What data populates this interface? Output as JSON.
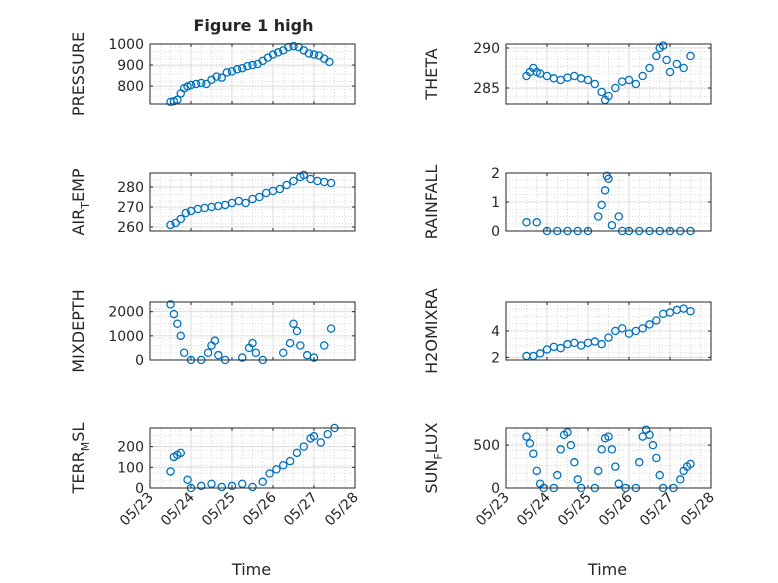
{
  "figure": {
    "title": "Figure 1 high"
  },
  "colors": {
    "marker": "#0072BD",
    "axis": "#262626",
    "grid": "#dcdcdc",
    "minorgrid": "#d0d0d0"
  },
  "chart_data": [
    {
      "type": "scatter",
      "panel": "pressure",
      "title": "Figure 1 high",
      "ylabel": "PRESSURE",
      "ylim": [
        715,
        1000
      ],
      "yticks": [
        800,
        900,
        1000
      ],
      "yticklabels": [
        "800",
        "900",
        "1000"
      ],
      "xlim": [
        "05/23",
        "05/28"
      ],
      "grid": true,
      "points": [
        [
          "05/23 12:00",
          725
        ],
        [
          "05/23 14:00",
          728
        ],
        [
          "05/23 16:00",
          735
        ],
        [
          "05/23 18:00",
          765
        ],
        [
          "05/23 20:00",
          790
        ],
        [
          "05/23 22:00",
          798
        ],
        [
          "05/24 00:00",
          805
        ],
        [
          "05/24 03:00",
          810
        ],
        [
          "05/24 06:00",
          815
        ],
        [
          "05/24 09:00",
          810
        ],
        [
          "05/24 12:00",
          830
        ],
        [
          "05/24 15:00",
          845
        ],
        [
          "05/24 18:00",
          840
        ],
        [
          "05/24 21:00",
          865
        ],
        [
          "05/25 00:00",
          870
        ],
        [
          "05/25 03:00",
          880
        ],
        [
          "05/25 06:00",
          885
        ],
        [
          "05/25 09:00",
          895
        ],
        [
          "05/25 12:00",
          900
        ],
        [
          "05/25 15:00",
          905
        ],
        [
          "05/25 18:00",
          920
        ],
        [
          "05/25 21:00",
          935
        ],
        [
          "05/26 00:00",
          950
        ],
        [
          "05/26 03:00",
          960
        ],
        [
          "05/26 06:00",
          970
        ],
        [
          "05/26 09:00",
          985
        ],
        [
          "05/26 12:00",
          990
        ],
        [
          "05/26 15:00",
          985
        ],
        [
          "05/26 18:00",
          970
        ],
        [
          "05/26 21:00",
          955
        ],
        [
          "05/27 00:00",
          950
        ],
        [
          "05/27 03:00",
          945
        ],
        [
          "05/27 06:00",
          930
        ],
        [
          "05/27 09:00",
          915
        ]
      ]
    },
    {
      "type": "scatter",
      "panel": "theta",
      "ylabel": "THETA",
      "ylim": [
        283,
        290.5
      ],
      "yticks": [
        285,
        290
      ],
      "yticklabels": [
        "285",
        "290"
      ],
      "xlim": [
        "05/23",
        "05/28"
      ],
      "grid": true,
      "points": [
        [
          "05/23 12:00",
          286.5
        ],
        [
          "05/23 14:00",
          287
        ],
        [
          "05/23 16:00",
          287.5
        ],
        [
          "05/23 18:00",
          287
        ],
        [
          "05/23 20:00",
          286.8
        ],
        [
          "05/24 00:00",
          286.5
        ],
        [
          "05/24 04:00",
          286.2
        ],
        [
          "05/24 08:00",
          286
        ],
        [
          "05/24 12:00",
          286.3
        ],
        [
          "05/24 16:00",
          286.5
        ],
        [
          "05/24 20:00",
          286.2
        ],
        [
          "05/25 00:00",
          286
        ],
        [
          "05/25 04:00",
          285.5
        ],
        [
          "05/25 08:00",
          284.5
        ],
        [
          "05/25 10:00",
          283.5
        ],
        [
          "05/25 12:00",
          284
        ],
        [
          "05/25 16:00",
          285
        ],
        [
          "05/25 20:00",
          285.8
        ],
        [
          "05/26 00:00",
          286
        ],
        [
          "05/26 04:00",
          285.5
        ],
        [
          "05/26 08:00",
          286.5
        ],
        [
          "05/26 12:00",
          287.5
        ],
        [
          "05/26 16:00",
          289
        ],
        [
          "05/26 18:00",
          290
        ],
        [
          "05/26 20:00",
          290.3
        ],
        [
          "05/26 22:00",
          288.5
        ],
        [
          "05/27 00:00",
          287
        ],
        [
          "05/27 04:00",
          288
        ],
        [
          "05/27 08:00",
          287.5
        ],
        [
          "05/27 12:00",
          289
        ]
      ]
    },
    {
      "type": "scatter",
      "panel": "air_temp",
      "ylabel_main": "AIR",
      "ylabel_sub": "T",
      "ylabel_tail": "EMP",
      "ylim": [
        258,
        287
      ],
      "yticks": [
        260,
        270,
        280
      ],
      "yticklabels": [
        "260",
        "270",
        "280"
      ],
      "xlim": [
        "05/23",
        "05/28"
      ],
      "grid": true,
      "points": [
        [
          "05/23 12:00",
          261
        ],
        [
          "05/23 15:00",
          262
        ],
        [
          "05/23 18:00",
          264
        ],
        [
          "05/23 21:00",
          267
        ],
        [
          "05/24 00:00",
          268
        ],
        [
          "05/24 04:00",
          269
        ],
        [
          "05/24 08:00",
          269.5
        ],
        [
          "05/24 12:00",
          270
        ],
        [
          "05/24 16:00",
          270.5
        ],
        [
          "05/24 20:00",
          271
        ],
        [
          "05/25 00:00",
          272
        ],
        [
          "05/25 04:00",
          273
        ],
        [
          "05/25 08:00",
          272
        ],
        [
          "05/25 12:00",
          274
        ],
        [
          "05/25 16:00",
          275
        ],
        [
          "05/25 20:00",
          277
        ],
        [
          "05/26 00:00",
          278
        ],
        [
          "05/26 04:00",
          279
        ],
        [
          "05/26 08:00",
          281
        ],
        [
          "05/26 12:00",
          283
        ],
        [
          "05/26 16:00",
          285
        ],
        [
          "05/26 18:00",
          286
        ],
        [
          "05/26 22:00",
          284
        ],
        [
          "05/27 02:00",
          283
        ],
        [
          "05/27 06:00",
          282.5
        ],
        [
          "05/27 10:00",
          282
        ]
      ]
    },
    {
      "type": "scatter",
      "panel": "rainfall",
      "ylabel": "RAINFALL",
      "ylim": [
        0,
        2
      ],
      "yticks": [
        0,
        1,
        2
      ],
      "yticklabels": [
        "0",
        "1",
        "2"
      ],
      "xlim": [
        "05/23",
        "05/28"
      ],
      "grid": true,
      "points": [
        [
          "05/23 12:00",
          0.3
        ],
        [
          "05/23 18:00",
          0.3
        ],
        [
          "05/24 00:00",
          0
        ],
        [
          "05/24 06:00",
          0
        ],
        [
          "05/24 12:00",
          0
        ],
        [
          "05/24 18:00",
          0
        ],
        [
          "05/25 00:00",
          0
        ],
        [
          "05/25 06:00",
          0.5
        ],
        [
          "05/25 08:00",
          0.9
        ],
        [
          "05/25 10:00",
          1.4
        ],
        [
          "05/25 11:00",
          1.9
        ],
        [
          "05/25 12:00",
          1.8
        ],
        [
          "05/25 14:00",
          0.2
        ],
        [
          "05/25 18:00",
          0.5
        ],
        [
          "05/25 20:00",
          0
        ],
        [
          "05/26 00:00",
          0
        ],
        [
          "05/26 06:00",
          0
        ],
        [
          "05/26 12:00",
          0
        ],
        [
          "05/26 18:00",
          0
        ],
        [
          "05/27 00:00",
          0
        ],
        [
          "05/27 06:00",
          0
        ],
        [
          "05/27 12:00",
          0
        ]
      ]
    },
    {
      "type": "scatter",
      "panel": "mixdepth",
      "ylabel": "MIXDEPTH",
      "ylim": [
        0,
        2400
      ],
      "yticks": [
        0,
        1000,
        2000
      ],
      "yticklabels": [
        "0",
        "1000",
        "2000"
      ],
      "xlim": [
        "05/23",
        "05/28"
      ],
      "grid": true,
      "points": [
        [
          "05/23 12:00",
          2300
        ],
        [
          "05/23 14:00",
          1900
        ],
        [
          "05/23 16:00",
          1500
        ],
        [
          "05/23 18:00",
          1000
        ],
        [
          "05/23 20:00",
          300
        ],
        [
          "05/24 00:00",
          0
        ],
        [
          "05/24 06:00",
          0
        ],
        [
          "05/24 10:00",
          300
        ],
        [
          "05/24 12:00",
          600
        ],
        [
          "05/24 14:00",
          800
        ],
        [
          "05/24 16:00",
          200
        ],
        [
          "05/24 20:00",
          0
        ],
        [
          "05/25 06:00",
          100
        ],
        [
          "05/25 10:00",
          500
        ],
        [
          "05/25 12:00",
          700
        ],
        [
          "05/25 14:00",
          300
        ],
        [
          "05/25 18:00",
          0
        ],
        [
          "05/26 06:00",
          300
        ],
        [
          "05/26 10:00",
          700
        ],
        [
          "05/26 12:00",
          1500
        ],
        [
          "05/26 14:00",
          1200
        ],
        [
          "05/26 16:00",
          600
        ],
        [
          "05/26 20:00",
          200
        ],
        [
          "05/27 00:00",
          100
        ],
        [
          "05/27 06:00",
          600
        ],
        [
          "05/27 10:00",
          1300
        ]
      ]
    },
    {
      "type": "scatter",
      "panel": "h2omixra",
      "ylabel": "H2OMIXRA",
      "ylim": [
        1.8,
        6.2
      ],
      "yticks": [
        2,
        4
      ],
      "yticklabels": [
        "2",
        "4"
      ],
      "xlim": [
        "05/23",
        "05/28"
      ],
      "grid": true,
      "points": [
        [
          "05/23 12:00",
          2.1
        ],
        [
          "05/23 16:00",
          2.1
        ],
        [
          "05/23 20:00",
          2.3
        ],
        [
          "05/24 00:00",
          2.6
        ],
        [
          "05/24 04:00",
          2.8
        ],
        [
          "05/24 08:00",
          2.7
        ],
        [
          "05/24 12:00",
          3
        ],
        [
          "05/24 16:00",
          3.1
        ],
        [
          "05/24 20:00",
          2.9
        ],
        [
          "05/25 00:00",
          3.1
        ],
        [
          "05/25 04:00",
          3.2
        ],
        [
          "05/25 08:00",
          3
        ],
        [
          "05/25 12:00",
          3.5
        ],
        [
          "05/25 16:00",
          4
        ],
        [
          "05/25 20:00",
          4.2
        ],
        [
          "05/26 00:00",
          3.8
        ],
        [
          "05/26 04:00",
          4
        ],
        [
          "05/26 08:00",
          4.2
        ],
        [
          "05/26 12:00",
          4.5
        ],
        [
          "05/26 16:00",
          4.8
        ],
        [
          "05/26 20:00",
          5.3
        ],
        [
          "05/27 00:00",
          5.4
        ],
        [
          "05/27 04:00",
          5.6
        ],
        [
          "05/27 08:00",
          5.7
        ],
        [
          "05/27 12:00",
          5.5
        ]
      ]
    },
    {
      "type": "scatter",
      "panel": "terr_msl",
      "ylabel_main": "TERR",
      "ylabel_sub": "M",
      "ylabel_tail": "SL",
      "ylim": [
        0,
        290
      ],
      "yticks": [
        0,
        100,
        200
      ],
      "yticklabels": [
        "0",
        "100",
        "200"
      ],
      "xticks": [
        "05/23",
        "05/24",
        "05/25",
        "05/26",
        "05/27",
        "05/28"
      ],
      "xlim": [
        "05/23",
        "05/28"
      ],
      "xlabel": "Time",
      "grid": true,
      "points": [
        [
          "05/23 12:00",
          80
        ],
        [
          "05/23 14:00",
          150
        ],
        [
          "05/23 16:00",
          160
        ],
        [
          "05/23 18:00",
          170
        ],
        [
          "05/23 22:00",
          40
        ],
        [
          "05/24 00:00",
          0
        ],
        [
          "05/24 06:00",
          10
        ],
        [
          "05/24 12:00",
          20
        ],
        [
          "05/24 18:00",
          5
        ],
        [
          "05/25 00:00",
          10
        ],
        [
          "05/25 06:00",
          20
        ],
        [
          "05/25 12:00",
          5
        ],
        [
          "05/25 18:00",
          30
        ],
        [
          "05/25 22:00",
          70
        ],
        [
          "05/26 02:00",
          90
        ],
        [
          "05/26 06:00",
          110
        ],
        [
          "05/26 10:00",
          130
        ],
        [
          "05/26 14:00",
          170
        ],
        [
          "05/26 18:00",
          200
        ],
        [
          "05/26 22:00",
          240
        ],
        [
          "05/27 00:00",
          250
        ],
        [
          "05/27 04:00",
          220
        ],
        [
          "05/27 08:00",
          260
        ],
        [
          "05/27 12:00",
          290
        ]
      ]
    },
    {
      "type": "scatter",
      "panel": "sun_flux",
      "ylabel_main": "SUN",
      "ylabel_sub": "F",
      "ylabel_tail": "LUX",
      "ylim": [
        0,
        700
      ],
      "yticks": [
        0,
        500
      ],
      "yticklabels": [
        "0",
        "500"
      ],
      "xticks": [
        "05/23",
        "05/24",
        "05/25",
        "05/26",
        "05/27",
        "05/28"
      ],
      "xlim": [
        "05/23",
        "05/28"
      ],
      "xlabel": "Time",
      "grid": true,
      "points": [
        [
          "05/23 12:00",
          600
        ],
        [
          "05/23 14:00",
          520
        ],
        [
          "05/23 16:00",
          400
        ],
        [
          "05/23 18:00",
          200
        ],
        [
          "05/23 20:00",
          50
        ],
        [
          "05/23 22:00",
          0
        ],
        [
          "05/24 04:00",
          0
        ],
        [
          "05/24 06:00",
          150
        ],
        [
          "05/24 08:00",
          450
        ],
        [
          "05/24 10:00",
          620
        ],
        [
          "05/24 12:00",
          650
        ],
        [
          "05/24 14:00",
          500
        ],
        [
          "05/24 16:00",
          300
        ],
        [
          "05/24 18:00",
          100
        ],
        [
          "05/24 20:00",
          0
        ],
        [
          "05/25 04:00",
          0
        ],
        [
          "05/25 06:00",
          200
        ],
        [
          "05/25 08:00",
          450
        ],
        [
          "05/25 10:00",
          580
        ],
        [
          "05/25 12:00",
          600
        ],
        [
          "05/25 14:00",
          450
        ],
        [
          "05/25 16:00",
          250
        ],
        [
          "05/25 18:00",
          50
        ],
        [
          "05/25 22:00",
          0
        ],
        [
          "05/26 04:00",
          0
        ],
        [
          "05/26 06:00",
          300
        ],
        [
          "05/26 08:00",
          600
        ],
        [
          "05/26 10:00",
          680
        ],
        [
          "05/26 12:00",
          620
        ],
        [
          "05/26 14:00",
          500
        ],
        [
          "05/26 16:00",
          350
        ],
        [
          "05/26 18:00",
          150
        ],
        [
          "05/26 20:00",
          0
        ],
        [
          "05/27 02:00",
          0
        ],
        [
          "05/27 06:00",
          100
        ],
        [
          "05/27 08:00",
          200
        ],
        [
          "05/27 10:00",
          250
        ],
        [
          "05/27 12:00",
          280
        ]
      ]
    }
  ]
}
